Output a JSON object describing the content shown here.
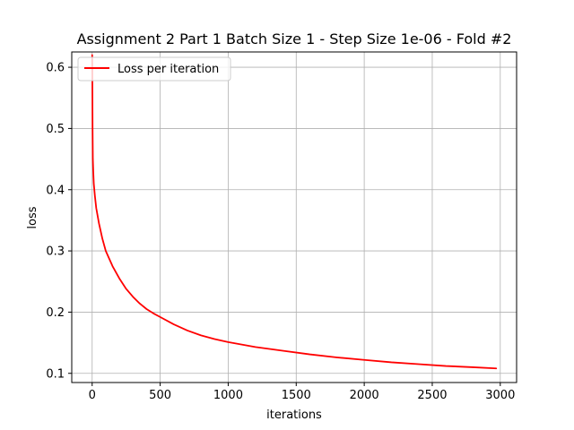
{
  "chart_data": {
    "type": "line",
    "title": "Assignment 2 Part 1 Batch Size 1 - Step Size 1e-06 - Fold #2",
    "xlabel": "iterations",
    "ylabel": "loss",
    "xlim": [
      -150,
      3120
    ],
    "ylim": [
      0.085,
      0.625
    ],
    "xticks": [
      0,
      500,
      1000,
      1500,
      2000,
      2500,
      3000
    ],
    "yticks": [
      0.1,
      0.2,
      0.3,
      0.4,
      0.5,
      0.6
    ],
    "xtick_labels": [
      "0",
      "500",
      "1000",
      "1500",
      "2000",
      "2500",
      "3000"
    ],
    "ytick_labels": [
      "0.1",
      "0.2",
      "0.3",
      "0.4",
      "0.5",
      "0.6"
    ],
    "grid": true,
    "legend": {
      "position": "top-left"
    },
    "series": [
      {
        "name": "Loss per iteration",
        "color": "#ff0000",
        "x": [
          0,
          1,
          2,
          3,
          5,
          8,
          12,
          20,
          30,
          50,
          75,
          100,
          150,
          200,
          250,
          300,
          350,
          400,
          450,
          500,
          600,
          700,
          800,
          900,
          1000,
          1200,
          1400,
          1600,
          1800,
          2000,
          2200,
          2400,
          2600,
          2800,
          2970
        ],
        "y": [
          0.62,
          0.6,
          0.55,
          0.5,
          0.45,
          0.43,
          0.41,
          0.39,
          0.37,
          0.345,
          0.32,
          0.3,
          0.275,
          0.255,
          0.238,
          0.225,
          0.214,
          0.205,
          0.198,
          0.192,
          0.18,
          0.17,
          0.162,
          0.156,
          0.151,
          0.143,
          0.137,
          0.131,
          0.126,
          0.122,
          0.118,
          0.115,
          0.112,
          0.11,
          0.108
        ]
      }
    ]
  }
}
